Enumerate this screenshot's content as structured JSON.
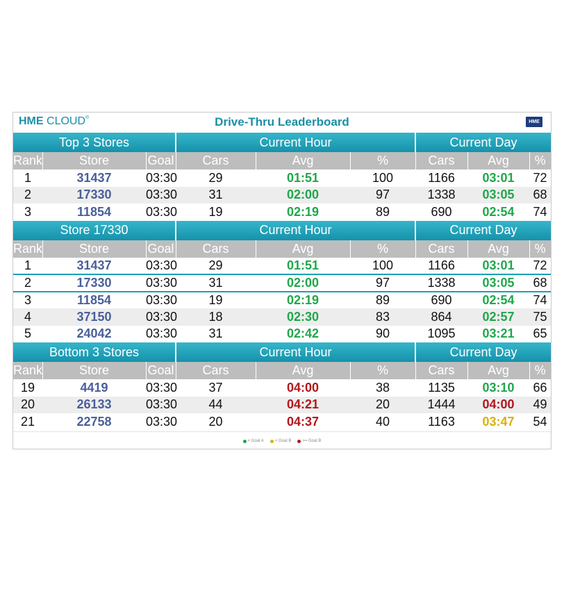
{
  "app": {
    "logo_bold": "HME",
    "logo_light": " CLOUD",
    "logo_mark": "®",
    "title": "Drive-Thru Leaderboard",
    "badge": "HME"
  },
  "sections": [
    {
      "heading": "Top 3 Stores",
      "hour_heading": "Current Hour",
      "day_heading": "Current Day",
      "columns": [
        "Rank",
        "Store",
        "Goal",
        "Cars",
        "Avg",
        "%",
        "Cars",
        "Avg",
        "%"
      ],
      "rows": [
        {
          "rank": "1",
          "store": "31437",
          "goal": "03:30",
          "hour_cars": "29",
          "hour_avg": "01:51",
          "hour_avg_status": "g",
          "hour_pct": "100",
          "day_cars": "1166",
          "day_avg": "03:01",
          "day_avg_status": "g",
          "day_pct": "72"
        },
        {
          "rank": "2",
          "store": "17330",
          "goal": "03:30",
          "hour_cars": "31",
          "hour_avg": "02:00",
          "hour_avg_status": "g",
          "hour_pct": "97",
          "day_cars": "1338",
          "day_avg": "03:05",
          "day_avg_status": "g",
          "day_pct": "68"
        },
        {
          "rank": "3",
          "store": "11854",
          "goal": "03:30",
          "hour_cars": "19",
          "hour_avg": "02:19",
          "hour_avg_status": "g",
          "hour_pct": "89",
          "day_cars": "690",
          "day_avg": "02:54",
          "day_avg_status": "g",
          "day_pct": "74"
        }
      ]
    },
    {
      "heading": "Store 17330",
      "hour_heading": "Current Hour",
      "day_heading": "Current Day",
      "columns": [
        "Rank",
        "Store",
        "Goal",
        "Cars",
        "Avg",
        "%",
        "Cars",
        "Avg",
        "%"
      ],
      "highlight_index": 1,
      "rows": [
        {
          "rank": "1",
          "store": "31437",
          "goal": "03:30",
          "hour_cars": "29",
          "hour_avg": "01:51",
          "hour_avg_status": "g",
          "hour_pct": "100",
          "day_cars": "1166",
          "day_avg": "03:01",
          "day_avg_status": "g",
          "day_pct": "72"
        },
        {
          "rank": "2",
          "store": "17330",
          "goal": "03:30",
          "hour_cars": "31",
          "hour_avg": "02:00",
          "hour_avg_status": "g",
          "hour_pct": "97",
          "day_cars": "1338",
          "day_avg": "03:05",
          "day_avg_status": "g",
          "day_pct": "68"
        },
        {
          "rank": "3",
          "store": "11854",
          "goal": "03:30",
          "hour_cars": "19",
          "hour_avg": "02:19",
          "hour_avg_status": "g",
          "hour_pct": "89",
          "day_cars": "690",
          "day_avg": "02:54",
          "day_avg_status": "g",
          "day_pct": "74"
        },
        {
          "rank": "4",
          "store": "37150",
          "goal": "03:30",
          "hour_cars": "18",
          "hour_avg": "02:30",
          "hour_avg_status": "g",
          "hour_pct": "83",
          "day_cars": "864",
          "day_avg": "02:57",
          "day_avg_status": "g",
          "day_pct": "75"
        },
        {
          "rank": "5",
          "store": "24042",
          "goal": "03:30",
          "hour_cars": "31",
          "hour_avg": "02:42",
          "hour_avg_status": "g",
          "hour_pct": "90",
          "day_cars": "1095",
          "day_avg": "03:21",
          "day_avg_status": "g",
          "day_pct": "65"
        }
      ]
    },
    {
      "heading": "Bottom 3 Stores",
      "hour_heading": "Current Hour",
      "day_heading": "Current Day",
      "columns": [
        "Rank",
        "Store",
        "Goal",
        "Cars",
        "Avg",
        "%",
        "Cars",
        "Avg",
        "%"
      ],
      "rows": [
        {
          "rank": "19",
          "store": "4419",
          "goal": "03:30",
          "hour_cars": "37",
          "hour_avg": "04:00",
          "hour_avg_status": "r",
          "hour_pct": "38",
          "day_cars": "1135",
          "day_avg": "03:10",
          "day_avg_status": "g",
          "day_pct": "66"
        },
        {
          "rank": "20",
          "store": "26133",
          "goal": "03:30",
          "hour_cars": "44",
          "hour_avg": "04:21",
          "hour_avg_status": "r",
          "hour_pct": "20",
          "day_cars": "1444",
          "day_avg": "04:00",
          "day_avg_status": "r",
          "day_pct": "49"
        },
        {
          "rank": "21",
          "store": "22758",
          "goal": "03:30",
          "hour_cars": "20",
          "hour_avg": "04:37",
          "hour_avg_status": "r",
          "hour_pct": "40",
          "day_cars": "1163",
          "day_avg": "03:47",
          "day_avg_status": "y",
          "day_pct": "54"
        }
      ]
    }
  ],
  "legend": [
    {
      "label": "< Goal A",
      "color": "#1fa74a"
    },
    {
      "label": "< Goal B",
      "color": "#d9b10f"
    },
    {
      "label": ">= Goal B",
      "color": "#b3161c"
    }
  ],
  "colors": {
    "accent": "#1a8fa6",
    "header_gray": "#bdbdbd",
    "store_blue": "#4a5f99",
    "good": "#1fa74a",
    "warn": "#d9b10f",
    "bad": "#b3161c"
  }
}
